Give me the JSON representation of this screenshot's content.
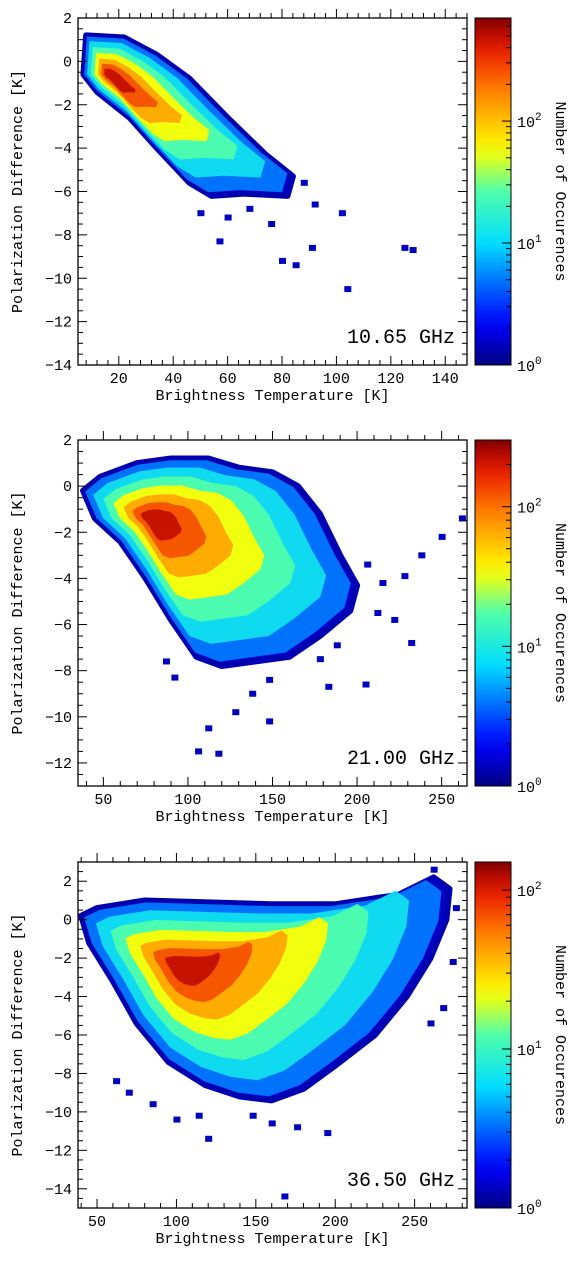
{
  "chart_data": [
    {
      "type": "heatmap",
      "annotation": "10.65 GHz",
      "xlabel": "Brightness Temperature [K]",
      "ylabel": "Polarization Difference [K]",
      "colorbar_label": "Number of Occurences",
      "xlim": [
        5,
        148
      ],
      "ylim": [
        -14,
        2
      ],
      "xticks": [
        20,
        40,
        60,
        80,
        100,
        120,
        140
      ],
      "yticks": [
        2,
        0,
        -2,
        -4,
        -6,
        -8,
        -10,
        -12,
        -14
      ],
      "colorbar": {
        "scale": "log",
        "range": [
          1,
          700
        ],
        "ticks": [
          {
            "base": "10",
            "exp": "0",
            "value": 1
          },
          {
            "base": "10",
            "exp": "1",
            "value": 10
          },
          {
            "base": "10",
            "exp": "2",
            "value": 100
          }
        ]
      },
      "density_polygon": [
        [
          8,
          1.2
        ],
        [
          22,
          1.1
        ],
        [
          34,
          0.3
        ],
        [
          46,
          -0.8
        ],
        [
          60,
          -2.6
        ],
        [
          74,
          -4.3
        ],
        [
          84,
          -5.3
        ],
        [
          82,
          -6.2
        ],
        [
          66,
          -6.1
        ],
        [
          54,
          -6.2
        ],
        [
          46,
          -5.6
        ],
        [
          34,
          -4.0
        ],
        [
          24,
          -2.6
        ],
        [
          12,
          -1.4
        ],
        [
          7,
          -0.6
        ]
      ],
      "peak": {
        "x": 16,
        "y": -0.6
      },
      "sparse_points": [
        [
          60,
          -7.2
        ],
        [
          68,
          -6.8
        ],
        [
          76,
          -7.5
        ],
        [
          88,
          -5.6
        ],
        [
          92,
          -6.6
        ],
        [
          80,
          -9.2
        ],
        [
          85,
          -9.4
        ],
        [
          91,
          -8.6
        ],
        [
          102,
          -7.0
        ],
        [
          104,
          -10.5
        ],
        [
          125,
          -8.6
        ],
        [
          128,
          -8.7
        ],
        [
          50,
          -7.0
        ],
        [
          57,
          -8.3
        ]
      ]
    },
    {
      "type": "heatmap",
      "annotation": "21.00 GHz",
      "xlabel": "Brightness Temperature [K]",
      "ylabel": "Polarization Difference [K]",
      "colorbar_label": "Number of Occurences",
      "xlim": [
        35,
        265
      ],
      "ylim": [
        -13,
        2
      ],
      "xticks": [
        50,
        100,
        150,
        200,
        250
      ],
      "yticks": [
        2,
        0,
        -2,
        -4,
        -6,
        -8,
        -10,
        -12
      ],
      "colorbar": {
        "scale": "log",
        "range": [
          1,
          300
        ],
        "ticks": [
          {
            "base": "10",
            "exp": "0",
            "value": 1
          },
          {
            "base": "10",
            "exp": "1",
            "value": 10
          },
          {
            "base": "10",
            "exp": "2",
            "value": 100
          }
        ]
      },
      "density_polygon": [
        [
          38,
          -0.2
        ],
        [
          48,
          0.4
        ],
        [
          70,
          1.0
        ],
        [
          90,
          1.2
        ],
        [
          112,
          1.2
        ],
        [
          130,
          0.8
        ],
        [
          150,
          0.6
        ],
        [
          165,
          0.0
        ],
        [
          178,
          -1.2
        ],
        [
          190,
          -3.0
        ],
        [
          200,
          -4.3
        ],
        [
          196,
          -5.4
        ],
        [
          178,
          -6.5
        ],
        [
          160,
          -7.4
        ],
        [
          140,
          -7.6
        ],
        [
          120,
          -7.8
        ],
        [
          105,
          -7.4
        ],
        [
          90,
          -5.8
        ],
        [
          75,
          -4.0
        ],
        [
          60,
          -2.4
        ],
        [
          45,
          -1.4
        ]
      ],
      "peak": {
        "x": 78,
        "y": -1.4
      },
      "sparse_points": [
        [
          206,
          -3.4
        ],
        [
          215,
          -4.2
        ],
        [
          228,
          -3.9
        ],
        [
          232,
          -6.8
        ],
        [
          222,
          -5.8
        ],
        [
          212,
          -5.5
        ],
        [
          238,
          -3.0
        ],
        [
          250,
          -2.2
        ],
        [
          262,
          -1.4
        ],
        [
          205,
          -8.6
        ],
        [
          178,
          -7.5
        ],
        [
          188,
          -6.9
        ],
        [
          148,
          -8.4
        ],
        [
          138,
          -9.0
        ],
        [
          112,
          -10.5
        ],
        [
          118,
          -11.6
        ],
        [
          106,
          -11.5
        ],
        [
          128,
          -9.8
        ],
        [
          148,
          -10.2
        ],
        [
          183,
          -8.7
        ],
        [
          87,
          -7.6
        ],
        [
          92,
          -8.3
        ]
      ]
    },
    {
      "type": "heatmap",
      "annotation": "36.50 GHz",
      "xlabel": "Brightness Temperature [K]",
      "ylabel": "Polarization Difference [K]",
      "colorbar_label": "Number of Occurences",
      "xlim": [
        38,
        283
      ],
      "ylim": [
        -15,
        3
      ],
      "xticks": [
        50,
        100,
        150,
        200,
        250
      ],
      "yticks": [
        2,
        0,
        -2,
        -4,
        -6,
        -8,
        -10,
        -12,
        -14
      ],
      "colorbar": {
        "scale": "log",
        "range": [
          1,
          150
        ],
        "ticks": [
          {
            "base": "10",
            "exp": "0",
            "value": 1
          },
          {
            "base": "10",
            "exp": "1",
            "value": 10
          },
          {
            "base": "10",
            "exp": "2",
            "value": 100
          }
        ]
      },
      "density_polygon": [
        [
          40,
          0.2
        ],
        [
          50,
          0.6
        ],
        [
          80,
          1.0
        ],
        [
          120,
          0.9
        ],
        [
          160,
          0.8
        ],
        [
          200,
          0.8
        ],
        [
          240,
          1.3
        ],
        [
          262,
          2.2
        ],
        [
          272,
          1.6
        ],
        [
          270,
          0.0
        ],
        [
          260,
          -2.0
        ],
        [
          245,
          -4.0
        ],
        [
          225,
          -6.0
        ],
        [
          200,
          -7.6
        ],
        [
          180,
          -8.8
        ],
        [
          160,
          -9.4
        ],
        [
          140,
          -9.2
        ],
        [
          118,
          -8.6
        ],
        [
          95,
          -7.4
        ],
        [
          75,
          -5.4
        ],
        [
          60,
          -3.2
        ],
        [
          45,
          -1.2
        ]
      ],
      "peak": {
        "x": 102,
        "y": -2.4
      },
      "sparse_points": [
        [
          62,
          -8.4
        ],
        [
          70,
          -9.0
        ],
        [
          85,
          -9.6
        ],
        [
          100,
          -10.4
        ],
        [
          114,
          -10.2
        ],
        [
          120,
          -11.4
        ],
        [
          148,
          -10.2
        ],
        [
          160,
          -10.6
        ],
        [
          176,
          -10.8
        ],
        [
          195,
          -11.1
        ],
        [
          168,
          -14.4
        ],
        [
          260,
          -5.4
        ],
        [
          268,
          -4.6
        ],
        [
          274,
          -2.2
        ],
        [
          276,
          0.6
        ],
        [
          262,
          2.6
        ]
      ]
    }
  ]
}
